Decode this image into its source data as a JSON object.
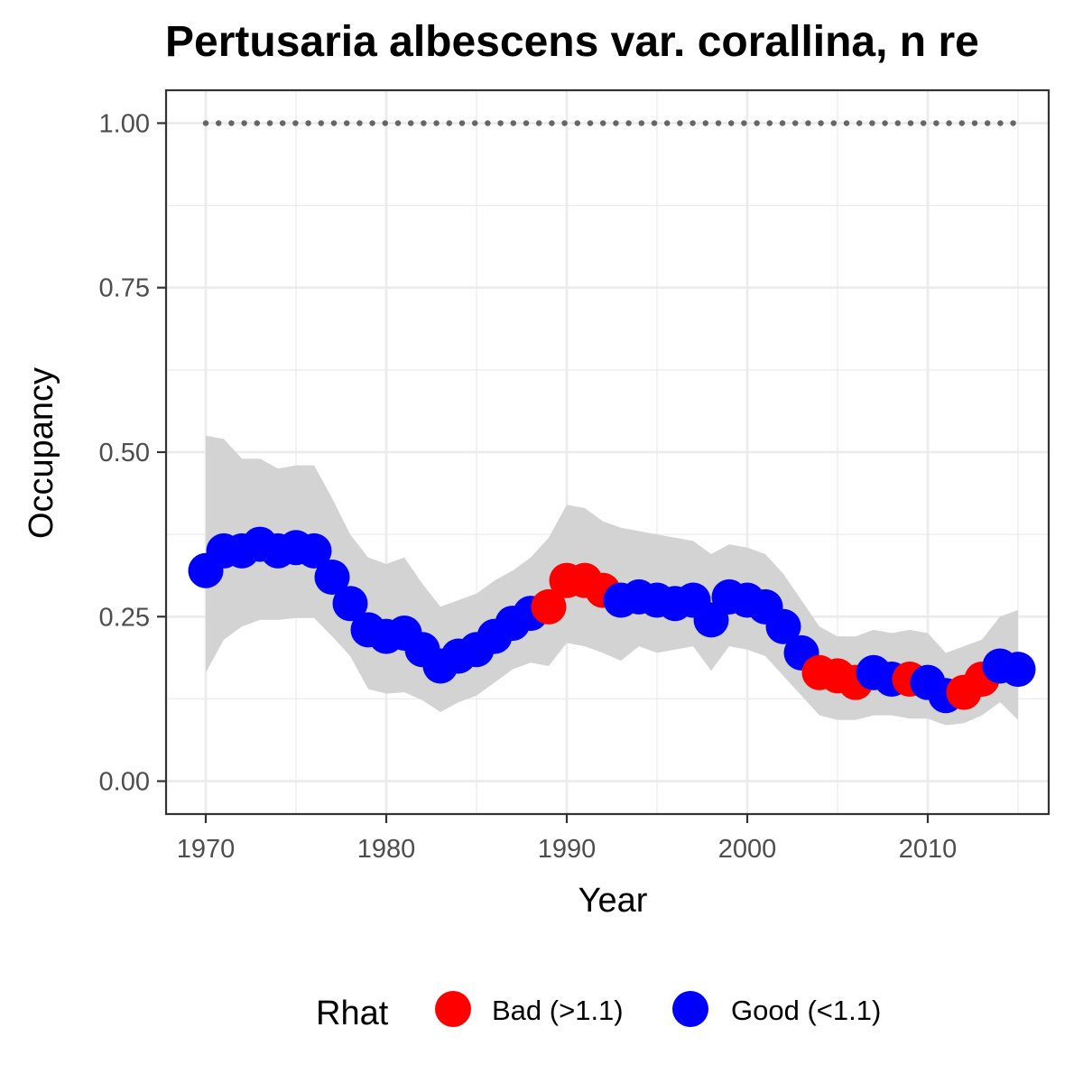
{
  "chart_data": {
    "type": "scatter",
    "title": "Pertusaria albescens var. corallina, n re",
    "xlabel": "Year",
    "ylabel": "Occupancy",
    "xlim": [
      1967.8,
      2016.7
    ],
    "ylim": [
      -0.05,
      1.05
    ],
    "x_ticks": [
      1970,
      1980,
      1990,
      2000,
      2010
    ],
    "x_tick_labels": [
      "1970",
      "1980",
      "1990",
      "2000",
      "2010"
    ],
    "y_ticks": [
      0,
      0.25,
      0.5,
      0.75,
      1.0
    ],
    "y_tick_labels": [
      "0.00",
      "0.25",
      "0.50",
      "0.75",
      "1.00"
    ],
    "grid": true,
    "legend": {
      "position": "bottom",
      "title": "Rhat",
      "entries": [
        {
          "label": "Bad (>1.1)",
          "color": "#ff0000"
        },
        {
          "label": "Good (<1.1)",
          "color": "#0000ff"
        }
      ]
    },
    "colors": {
      "Bad": "#ff0000",
      "Good": "#0000ff",
      "ribbon": "#d3d3d3",
      "reference": "#666666"
    },
    "reference_line": {
      "y": 1.0,
      "style": "dotted"
    },
    "x": [
      1970,
      1971,
      1972,
      1973,
      1974,
      1975,
      1976,
      1977,
      1978,
      1979,
      1980,
      1981,
      1982,
      1983,
      1984,
      1985,
      1986,
      1987,
      1988,
      1989,
      1990,
      1991,
      1992,
      1993,
      1994,
      1995,
      1996,
      1997,
      1998,
      1999,
      2000,
      2001,
      2002,
      2003,
      2004,
      2005,
      2006,
      2007,
      2008,
      2009,
      2010,
      2011,
      2012,
      2013,
      2014,
      2015
    ],
    "y": [
      0.32,
      0.35,
      0.35,
      0.36,
      0.35,
      0.355,
      0.35,
      0.31,
      0.27,
      0.23,
      0.22,
      0.225,
      0.2,
      0.175,
      0.19,
      0.2,
      0.22,
      0.24,
      0.255,
      0.265,
      0.305,
      0.305,
      0.29,
      0.275,
      0.28,
      0.275,
      0.27,
      0.275,
      0.245,
      0.28,
      0.275,
      0.265,
      0.235,
      0.195,
      0.165,
      0.16,
      0.15,
      0.165,
      0.155,
      0.155,
      0.15,
      0.13,
      0.135,
      0.155,
      0.175,
      0.17
    ],
    "lower": [
      0.165,
      0.215,
      0.235,
      0.245,
      0.245,
      0.248,
      0.248,
      0.22,
      0.19,
      0.14,
      0.133,
      0.135,
      0.123,
      0.105,
      0.12,
      0.13,
      0.15,
      0.17,
      0.18,
      0.175,
      0.21,
      0.205,
      0.195,
      0.183,
      0.205,
      0.195,
      0.2,
      0.205,
      0.168,
      0.205,
      0.2,
      0.19,
      0.16,
      0.13,
      0.1,
      0.093,
      0.093,
      0.1,
      0.1,
      0.095,
      0.095,
      0.085,
      0.088,
      0.1,
      0.12,
      0.093
    ],
    "upper": [
      0.525,
      0.52,
      0.49,
      0.49,
      0.475,
      0.48,
      0.48,
      0.43,
      0.375,
      0.34,
      0.33,
      0.34,
      0.3,
      0.265,
      0.275,
      0.285,
      0.305,
      0.32,
      0.34,
      0.37,
      0.42,
      0.415,
      0.395,
      0.385,
      0.38,
      0.375,
      0.37,
      0.365,
      0.345,
      0.36,
      0.355,
      0.345,
      0.315,
      0.275,
      0.235,
      0.22,
      0.22,
      0.23,
      0.225,
      0.23,
      0.225,
      0.195,
      0.205,
      0.215,
      0.25,
      0.26
    ],
    "rhat": [
      "Good",
      "Good",
      "Good",
      "Good",
      "Good",
      "Good",
      "Good",
      "Good",
      "Good",
      "Good",
      "Good",
      "Good",
      "Good",
      "Good",
      "Good",
      "Good",
      "Good",
      "Good",
      "Good",
      "Bad",
      "Bad",
      "Bad",
      "Bad",
      "Good",
      "Good",
      "Good",
      "Good",
      "Good",
      "Good",
      "Good",
      "Good",
      "Good",
      "Good",
      "Good",
      "Bad",
      "Bad",
      "Bad",
      "Good",
      "Good",
      "Bad",
      "Good",
      "Good",
      "Bad",
      "Bad",
      "Good",
      "Good"
    ]
  }
}
